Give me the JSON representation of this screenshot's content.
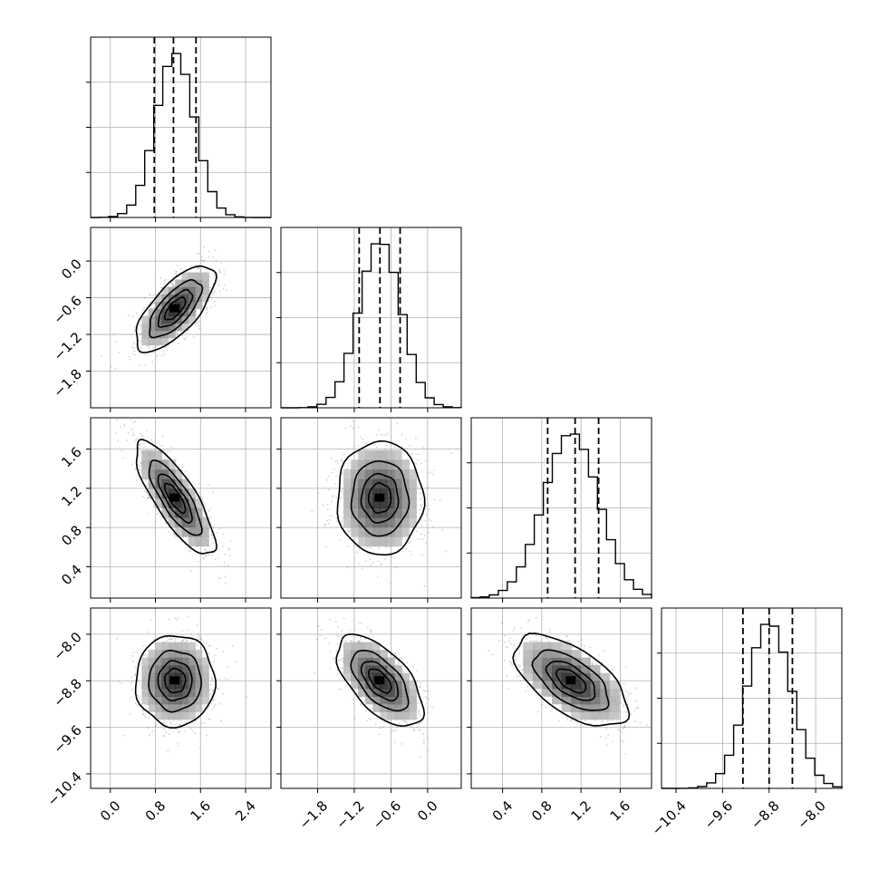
{
  "chart_data": {
    "type": "corner",
    "n_params": 4,
    "params": [
      {
        "mean": 1.15,
        "sd": 0.34,
        "q16": 0.78,
        "q50": 1.12,
        "q84": 1.52,
        "range": [
          -0.35,
          2.85
        ],
        "ticks": [
          0.0,
          0.8,
          1.6,
          2.4
        ],
        "tick_labels": [
          "0.0",
          "0.8",
          "1.6",
          "2.4"
        ]
      },
      {
        "mean": -0.78,
        "sd": 0.34,
        "q16": -1.12,
        "q50": -0.78,
        "q84": -0.45,
        "range": [
          -2.4,
          0.55
        ],
        "ticks": [
          -1.8,
          -1.2,
          -0.6,
          0.0
        ],
        "tick_labels": [
          "−1.8",
          "−1.2",
          "−0.6",
          "0.0"
        ]
      },
      {
        "mean": 1.1,
        "sd": 0.28,
        "q16": 0.86,
        "q50": 1.14,
        "q84": 1.38,
        "range": [
          0.08,
          1.92
        ],
        "ticks": [
          0.4,
          0.8,
          1.2,
          1.6
        ],
        "tick_labels": [
          "0.4",
          "0.8",
          "1.2",
          "1.6"
        ]
      },
      {
        "mean": -8.8,
        "sd": 0.38,
        "q16": -9.25,
        "q50": -8.8,
        "q84": -8.4,
        "range": [
          -10.65,
          -7.55
        ],
        "ticks": [
          -10.4,
          -9.6,
          -8.8,
          -8.0
        ],
        "tick_labels": [
          "−10.4",
          "−9.6",
          "−8.8",
          "−8.0"
        ]
      }
    ],
    "correlations": [
      [
        0,
        1,
        0.7
      ],
      [
        0,
        2,
        -0.8
      ],
      [
        0,
        3,
        0.0
      ],
      [
        1,
        2,
        0.0
      ],
      [
        1,
        3,
        -0.6
      ],
      [
        2,
        3,
        -0.6
      ]
    ],
    "quantiles": [
      0.16,
      0.5,
      0.84
    ],
    "grid": true,
    "marginal_histogram_bins": 20
  }
}
